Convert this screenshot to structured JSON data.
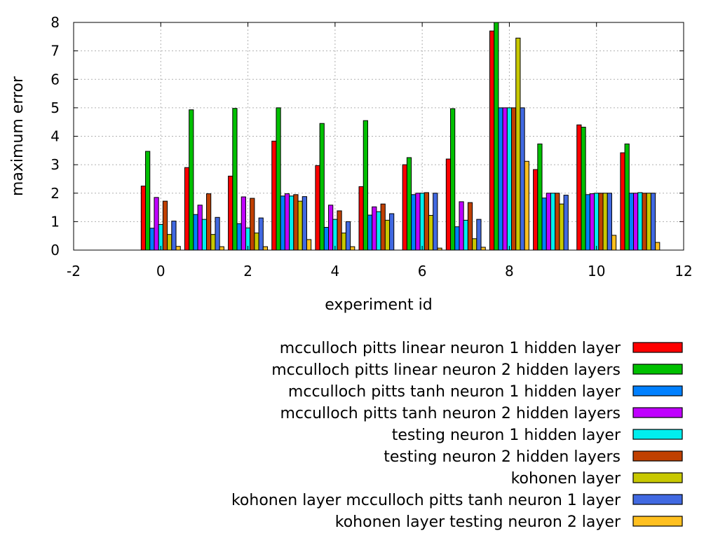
{
  "chart_data": {
    "type": "bar",
    "title": "",
    "xlabel": "experiment id",
    "ylabel": "maximum error",
    "xlim": [
      -2,
      12
    ],
    "ylim": [
      0,
      8
    ],
    "xticks": [
      -2,
      0,
      2,
      4,
      6,
      8,
      10,
      12
    ],
    "yticks": [
      0,
      1,
      2,
      3,
      4,
      5,
      6,
      7,
      8
    ],
    "grid": true,
    "legend_position": "bottom-right",
    "x": [
      0,
      1,
      2,
      3,
      4,
      5,
      6,
      7,
      8,
      9,
      10,
      11
    ],
    "series": [
      {
        "name": "mcculloch pitts linear neuron 1 hidden layer",
        "color": "#ff0000",
        "values": [
          2.25,
          2.9,
          2.6,
          3.83,
          2.97,
          2.23,
          3.0,
          3.2,
          7.7,
          2.83,
          4.4,
          3.42
        ]
      },
      {
        "name": "mcculloch pitts linear neuron 2 hidden layers",
        "color": "#00c000",
        "values": [
          3.47,
          4.93,
          4.98,
          5.0,
          4.45,
          4.55,
          3.25,
          4.97,
          8.0,
          3.73,
          4.32,
          3.73
        ]
      },
      {
        "name": "mcculloch pitts tanh neuron 1 hidden layer",
        "color": "#0080ff",
        "values": [
          0.77,
          1.25,
          0.93,
          1.9,
          0.8,
          1.23,
          1.95,
          0.82,
          5.0,
          1.83,
          1.95,
          2.0
        ]
      },
      {
        "name": "mcculloch pitts tanh neuron 2 hidden layers",
        "color": "#c000ff",
        "values": [
          1.85,
          1.58,
          1.87,
          1.98,
          1.58,
          1.52,
          2.0,
          1.7,
          5.0,
          2.0,
          1.98,
          2.0
        ]
      },
      {
        "name": "testing neuron 1 hidden layer",
        "color": "#00eeee",
        "values": [
          0.9,
          1.08,
          0.78,
          1.9,
          1.08,
          1.35,
          2.0,
          1.05,
          5.0,
          2.0,
          2.0,
          2.02
        ]
      },
      {
        "name": "testing neuron 2 hidden layers",
        "color": "#c04000",
        "values": [
          1.72,
          1.98,
          1.82,
          1.95,
          1.38,
          1.62,
          2.02,
          1.67,
          5.0,
          2.0,
          2.0,
          2.0
        ]
      },
      {
        "name": "kohonen layer",
        "color": "#c8c800",
        "values": [
          0.55,
          0.55,
          0.6,
          1.72,
          0.6,
          1.05,
          1.22,
          0.4,
          7.45,
          1.62,
          2.0,
          2.0
        ]
      },
      {
        "name": "kohonen layer mcculloch pitts tanh neuron 1 layer",
        "color": "#4169e1",
        "values": [
          1.02,
          1.15,
          1.13,
          1.88,
          1.0,
          1.28,
          2.0,
          1.08,
          5.0,
          1.93,
          2.0,
          2.0
        ]
      },
      {
        "name": "kohonen layer testing neuron 2 layer",
        "color": "#ffc020",
        "values": [
          0.13,
          0.12,
          0.12,
          0.37,
          0.12,
          0.0,
          0.07,
          0.1,
          3.12,
          0.0,
          0.52,
          0.27
        ]
      }
    ]
  }
}
